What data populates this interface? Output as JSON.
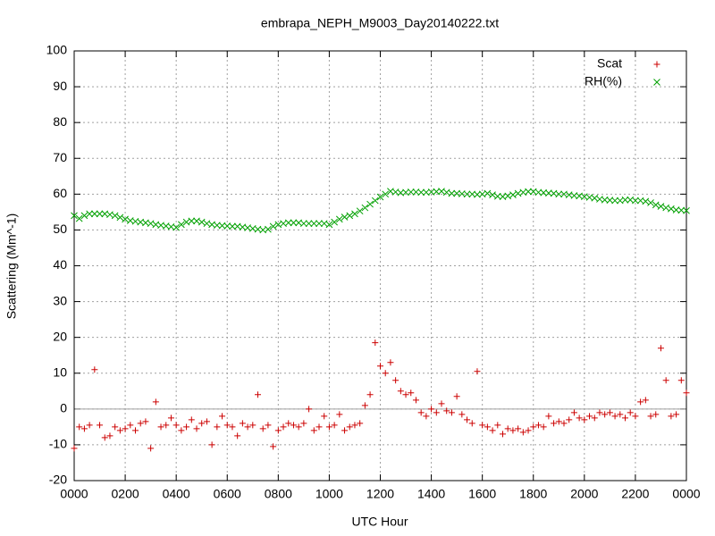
{
  "chart_data": {
    "type": "scatter",
    "title": "embrapa_NEPH_M9003_Day20140222.txt",
    "xlabel": "UTC Hour",
    "ylabel": "Scattering (Mm^-1)",
    "xlim": [
      0,
      24
    ],
    "xticks": [
      {
        "value": 0,
        "label": "0000"
      },
      {
        "value": 2,
        "label": "0200"
      },
      {
        "value": 4,
        "label": "0400"
      },
      {
        "value": 6,
        "label": "0600"
      },
      {
        "value": 8,
        "label": "0800"
      },
      {
        "value": 10,
        "label": "1000"
      },
      {
        "value": 12,
        "label": "1200"
      },
      {
        "value": 14,
        "label": "1400"
      },
      {
        "value": 16,
        "label": "1600"
      },
      {
        "value": 18,
        "label": "1800"
      },
      {
        "value": 20,
        "label": "2000"
      },
      {
        "value": 22,
        "label": "2200"
      },
      {
        "value": 24,
        "label": "0000"
      }
    ],
    "ylim": [
      -20,
      100
    ],
    "yticks": [
      -20,
      -10,
      0,
      10,
      20,
      30,
      40,
      50,
      60,
      70,
      80,
      90,
      100
    ],
    "grid": true,
    "zeroaxis": true,
    "legend": "top right",
    "x": [
      0,
      0.2,
      0.4,
      0.6,
      0.8,
      1,
      1.2,
      1.4,
      1.6,
      1.8,
      2,
      2.2,
      2.4,
      2.6,
      2.8,
      3,
      3.2,
      3.4,
      3.6,
      3.8,
      4,
      4.2,
      4.4,
      4.6,
      4.8,
      5,
      5.2,
      5.4,
      5.6,
      5.8,
      6,
      6.2,
      6.4,
      6.6,
      6.8,
      7,
      7.2,
      7.4,
      7.6,
      7.8,
      8,
      8.2,
      8.4,
      8.6,
      8.8,
      9,
      9.2,
      9.4,
      9.6,
      9.8,
      10,
      10.2,
      10.4,
      10.6,
      10.8,
      11,
      11.2,
      11.4,
      11.6,
      11.8,
      12,
      12.2,
      12.4,
      12.6,
      12.8,
      13,
      13.2,
      13.4,
      13.6,
      13.8,
      14,
      14.2,
      14.4,
      14.6,
      14.8,
      15,
      15.2,
      15.4,
      15.6,
      15.8,
      16,
      16.2,
      16.4,
      16.6,
      16.8,
      17,
      17.2,
      17.4,
      17.6,
      17.8,
      18,
      18.2,
      18.4,
      18.6,
      18.8,
      19,
      19.2,
      19.4,
      19.6,
      19.8,
      20,
      20.2,
      20.4,
      20.6,
      20.8,
      21,
      21.2,
      21.4,
      21.6,
      21.8,
      22,
      22.2,
      22.4,
      22.6,
      22.8,
      23,
      23.2,
      23.4,
      23.6,
      23.8,
      24
    ],
    "series": [
      {
        "name": "Scat",
        "color": "#cc0000",
        "marker": "plus",
        "values": [
          -11,
          -5,
          -5.5,
          -4.5,
          11,
          -4.5,
          -8,
          -7.5,
          -5,
          -6,
          -5.5,
          -4.5,
          -6,
          -4,
          -3.5,
          -11,
          2,
          -5,
          -4.5,
          -2.5,
          -4.5,
          -6,
          -5,
          -3,
          -5.5,
          -4,
          -3.5,
          -10,
          -5,
          -2,
          -4.5,
          -5,
          -7.5,
          -4,
          -5,
          -4.5,
          4,
          -5.5,
          -4.5,
          -10.5,
          -6,
          -5,
          -4,
          -4.5,
          -5,
          -4,
          0,
          -6,
          -5,
          -2,
          -5,
          -4.5,
          -1.5,
          -6,
          -5,
          -4.5,
          -4,
          1,
          4,
          18.5,
          12,
          10,
          13,
          8,
          5,
          4,
          4.5,
          2.5,
          -1,
          -2,
          0,
          -1,
          1.5,
          -0.5,
          -1,
          3.5,
          -1.5,
          -3,
          -4,
          10.5,
          -4.5,
          -5,
          -6,
          -4.5,
          -7,
          -5.5,
          -6,
          -5.5,
          -6.5,
          -6,
          -5,
          -4.5,
          -5,
          -2,
          -4,
          -3.5,
          -4,
          -3,
          -1,
          -2.5,
          -3,
          -2,
          -2.5,
          -1,
          -1.5,
          -1,
          -2,
          -1.5,
          -2.5,
          -1,
          -2,
          2,
          2.5,
          -2,
          -1.5,
          17,
          8,
          -2,
          -1.5,
          8,
          4.5
        ]
      },
      {
        "name": "RH(%)",
        "color": "#00a000",
        "marker": "cross",
        "values": [
          54,
          53.2,
          54,
          54.5,
          54.5,
          54.5,
          54.5,
          54.3,
          54,
          53.5,
          53,
          52.6,
          52.4,
          52.2,
          52,
          51.8,
          51.5,
          51.3,
          51.1,
          50.9,
          50.7,
          51.5,
          52.2,
          52.5,
          52.5,
          52.2,
          51.8,
          51.5,
          51.3,
          51.2,
          51.1,
          51,
          51,
          50.8,
          50.6,
          50.4,
          50.2,
          50,
          50.2,
          51,
          51.5,
          51.8,
          52,
          52,
          52,
          51.8,
          51.8,
          51.8,
          51.8,
          51.8,
          51.5,
          52.2,
          53,
          53.6,
          54,
          54.5,
          55.3,
          56.2,
          57.2,
          58.2,
          59.2,
          60,
          60.8,
          60.6,
          60.4,
          60.5,
          60.6,
          60.6,
          60.5,
          60.5,
          60.6,
          60.7,
          60.8,
          60.5,
          60.2,
          60.2,
          60.1,
          60,
          60,
          59.9,
          60,
          60.2,
          59.8,
          59.4,
          59.3,
          59.5,
          59.8,
          60.2,
          60.5,
          60.7,
          60.7,
          60.5,
          60.4,
          60.3,
          60.2,
          60,
          60,
          59.8,
          59.6,
          59.5,
          59.3,
          59.1,
          58.9,
          58.6,
          58.4,
          58.3,
          58.2,
          58.2,
          58.4,
          58.4,
          58.2,
          58.2,
          58,
          57.6,
          57,
          56.6,
          56.2,
          55.9,
          55.6,
          55.5,
          55.4
        ]
      }
    ]
  }
}
